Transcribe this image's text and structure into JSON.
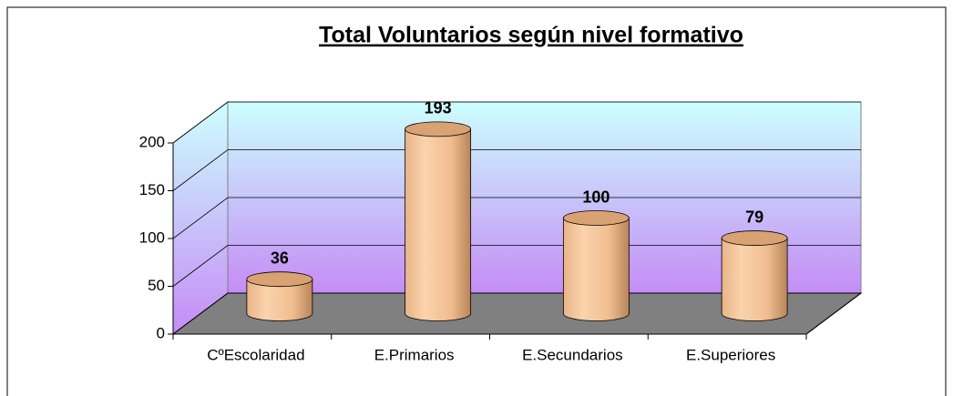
{
  "chart_data": {
    "type": "bar",
    "title": "Total Voluntarios según nivel formativo",
    "categories": [
      "CºEscolaridad",
      "E.Primarios",
      "E.Secundarios",
      "E.Superiores"
    ],
    "values": [
      36,
      193,
      100,
      79
    ],
    "color": "#f5c598",
    "ylim": [
      0,
      200
    ],
    "yticks": [
      0,
      50,
      100,
      150,
      200
    ],
    "grid": true
  }
}
